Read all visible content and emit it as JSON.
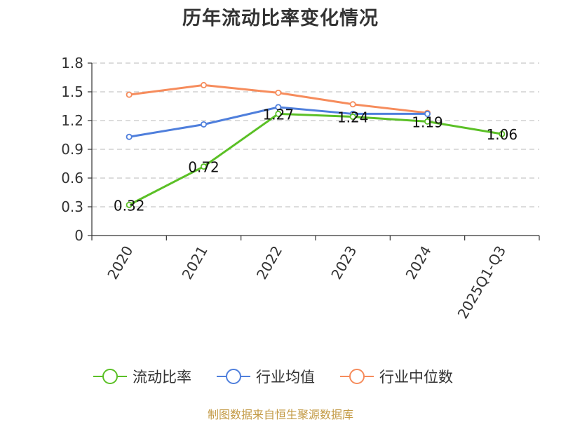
{
  "chart_data": {
    "type": "line",
    "title": "历年流动比率变化情况",
    "categories": [
      "2020",
      "2021",
      "2022",
      "2023",
      "2024",
      "2025Q1-Q3"
    ],
    "ylim": [
      0,
      1.8
    ],
    "yticks": [
      "0",
      "0.3",
      "0.6",
      "0.9",
      "1.2",
      "1.5",
      "1.8"
    ],
    "grid": true,
    "legend_position": "bottom",
    "series": [
      {
        "name": "流动比率",
        "color": "#5bc026",
        "values": [
          0.32,
          0.72,
          1.27,
          1.24,
          1.19,
          1.06
        ],
        "labels": [
          "0.32",
          "0.72",
          "1.27",
          "1.24",
          "1.19",
          "1.06"
        ]
      },
      {
        "name": "行业均值",
        "color": "#4f7fdc",
        "values": [
          1.03,
          1.16,
          1.34,
          1.27,
          1.27,
          null
        ]
      },
      {
        "name": "行业中位数",
        "color": "#f68c5c",
        "values": [
          1.47,
          1.57,
          1.49,
          1.37,
          1.28,
          null
        ]
      }
    ]
  },
  "footer": {
    "source": "制图数据来自恒生聚源数据库"
  }
}
